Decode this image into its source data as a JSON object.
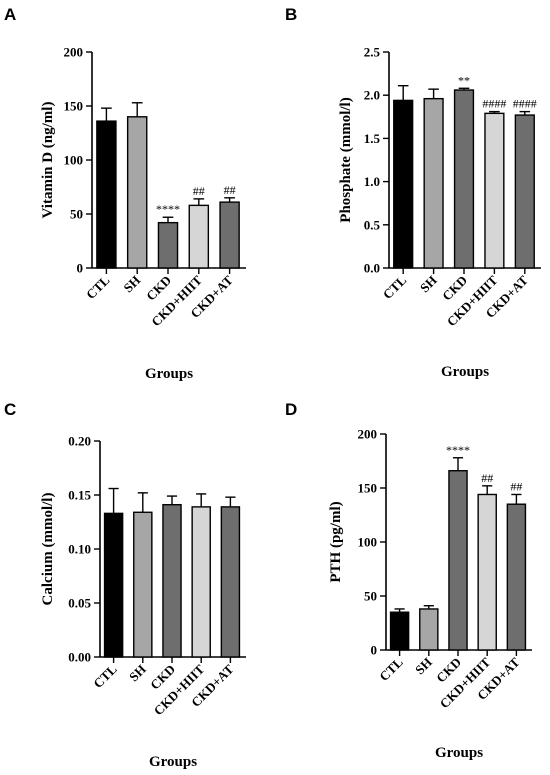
{
  "chart_data": [
    {
      "panel": "A",
      "type": "bar",
      "categories": [
        "CTL",
        "SH",
        "CKD",
        "CKD+HIIT",
        "CKD+AT"
      ],
      "values": [
        136,
        140,
        42,
        58,
        61
      ],
      "errors": [
        12,
        13,
        5,
        6,
        4
      ],
      "annotations": [
        "",
        "",
        "****",
        "##",
        "##"
      ],
      "colors": [
        "#000000",
        "#a6a6a6",
        "#6e6e6e",
        "#d6d6d6",
        "#6e6e6e"
      ],
      "ylabel": "Vitamin D (ng/ml)",
      "xlabel": "Groups",
      "ylim": [
        0,
        200
      ],
      "yticks": [
        "0",
        "50",
        "100",
        "150",
        "200"
      ],
      "ytick_values": [
        0,
        50,
        100,
        150,
        200
      ]
    },
    {
      "panel": "B",
      "type": "bar",
      "categories": [
        "CTL",
        "SH",
        "CKD",
        "CKD+HIIT",
        "CKD+AT"
      ],
      "values": [
        1.94,
        1.96,
        2.06,
        1.79,
        1.77
      ],
      "errors": [
        0.17,
        0.11,
        0.02,
        0.02,
        0.04
      ],
      "annotations": [
        "",
        "",
        "**",
        "####",
        "####"
      ],
      "colors": [
        "#000000",
        "#a6a6a6",
        "#6e6e6e",
        "#d6d6d6",
        "#6e6e6e"
      ],
      "ylabel": "Phosphate (mmol/l)",
      "xlabel": "Groups",
      "ylim": [
        0,
        2.5
      ],
      "yticks": [
        "0.0",
        "0.5",
        "1.0",
        "1.5",
        "2.0",
        "2.5"
      ],
      "ytick_values": [
        0,
        0.5,
        1.0,
        1.5,
        2.0,
        2.5
      ]
    },
    {
      "panel": "C",
      "type": "bar",
      "categories": [
        "CTL",
        "SH",
        "CKD",
        "CKD+HIIT",
        "CKD+AT"
      ],
      "values": [
        0.133,
        0.134,
        0.141,
        0.139,
        0.139
      ],
      "errors": [
        0.023,
        0.018,
        0.008,
        0.012,
        0.009
      ],
      "annotations": [
        "",
        "",
        "",
        "",
        ""
      ],
      "colors": [
        "#000000",
        "#a6a6a6",
        "#6e6e6e",
        "#d6d6d6",
        "#6e6e6e"
      ],
      "ylabel": "Calcium (mmol/l)",
      "xlabel": "Groups",
      "ylim": [
        0,
        0.2
      ],
      "yticks": [
        "0.00",
        "0.05",
        "0.10",
        "0.15",
        "0.20"
      ],
      "ytick_values": [
        0,
        0.05,
        0.1,
        0.15,
        0.2
      ]
    },
    {
      "panel": "D",
      "type": "bar",
      "categories": [
        "CTL",
        "SH",
        "CKD",
        "CKD+HIIT",
        "CKD+AT"
      ],
      "values": [
        35,
        38,
        166,
        144,
        135
      ],
      "errors": [
        3,
        3,
        12,
        8,
        9
      ],
      "annotations": [
        "",
        "",
        "****",
        "##",
        "##"
      ],
      "colors": [
        "#000000",
        "#a6a6a6",
        "#6e6e6e",
        "#d6d6d6",
        "#6e6e6e"
      ],
      "ylabel": "PTH (pg/ml)",
      "xlabel": "Groups",
      "ylim": [
        0,
        200
      ],
      "yticks": [
        "0",
        "50",
        "100",
        "150",
        "200"
      ],
      "ytick_values": [
        0,
        50,
        100,
        150,
        200
      ]
    }
  ]
}
